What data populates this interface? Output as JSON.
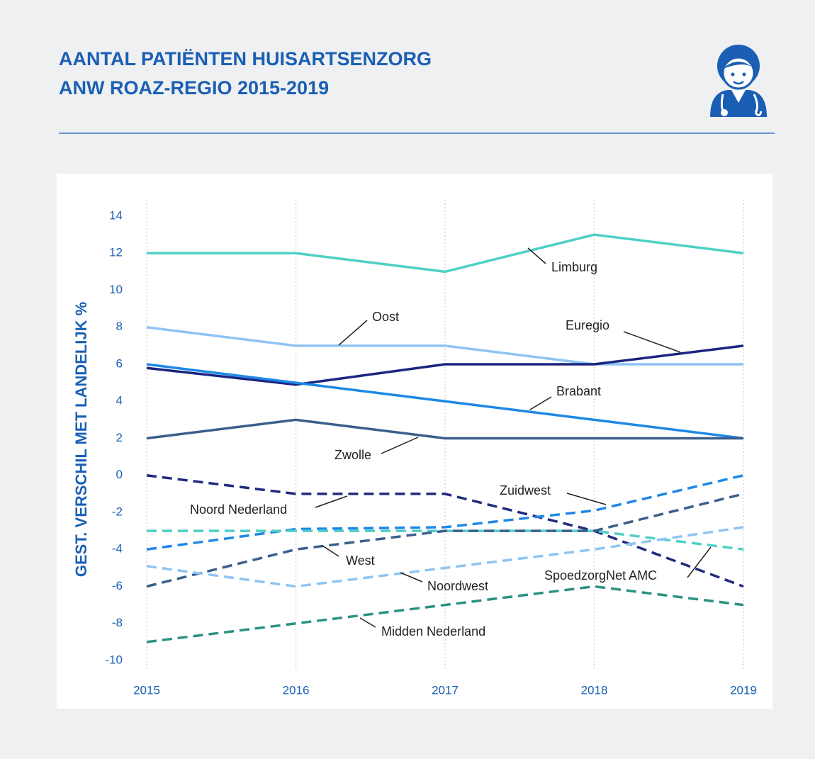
{
  "chart_data": {
    "type": "line",
    "title": [
      "AANTAL PATIËNTEN HUISARTSENZORG",
      "ANW ROAZ-REGIO 2015-2019"
    ],
    "y_label": "GEST. VERSCHIL MET LANDELIJK %",
    "categories": [
      "2015",
      "2016",
      "2017",
      "2018",
      "2019"
    ],
    "ylim": [
      -10,
      14
    ],
    "yticks": [
      -10,
      -8,
      -6,
      -4,
      -2,
      0,
      2,
      4,
      6,
      8,
      10,
      12,
      14
    ],
    "grid": true,
    "series": [
      {
        "name": "Limburg",
        "color": "#4fcfc6",
        "dashed": false,
        "values": [
          12,
          12,
          11,
          13,
          12
        ]
      },
      {
        "name": "Oost",
        "color": "#8fc4f3",
        "dashed": false,
        "values": [
          8,
          7,
          7,
          6,
          6
        ]
      },
      {
        "name": "Euregio",
        "color": "#1b2580",
        "dashed": false,
        "values": [
          5.8,
          4.9,
          6,
          6,
          7
        ]
      },
      {
        "name": "Brabant",
        "color": "#1e88e5",
        "dashed": false,
        "values": [
          6,
          5,
          4,
          3,
          2
        ]
      },
      {
        "name": "Zwolle",
        "color": "#3b5f8c",
        "dashed": false,
        "values": [
          2,
          3,
          2,
          2,
          2
        ]
      },
      {
        "name": "Noord Nederland",
        "color": "#1f2a7c",
        "dashed": true,
        "values": [
          0,
          -1,
          -1,
          -3,
          -6
        ]
      },
      {
        "name": "Zuidwest",
        "color": "#1e88e5",
        "dashed": true,
        "values": [
          -4,
          -2.9,
          -2.8,
          -1.9,
          0
        ]
      },
      {
        "name": "SpoedzorgNet AMC",
        "color": "#4fcfc6",
        "dashed": true,
        "values": [
          -3,
          -3,
          -3,
          -3,
          -4
        ]
      },
      {
        "name": "West",
        "color": "#3b5f8c",
        "dashed": true,
        "values": [
          -6,
          -4,
          -3,
          -3,
          -1
        ]
      },
      {
        "name": "Noordwest",
        "color": "#8fc4f3",
        "dashed": true,
        "values": [
          -4.9,
          -6,
          -5,
          -4,
          -2.8
        ]
      },
      {
        "name": "Midden Nederland",
        "color": "#2a9282",
        "dashed": true,
        "values": [
          -9,
          -8,
          -7,
          -6,
          -7
        ]
      }
    ]
  }
}
